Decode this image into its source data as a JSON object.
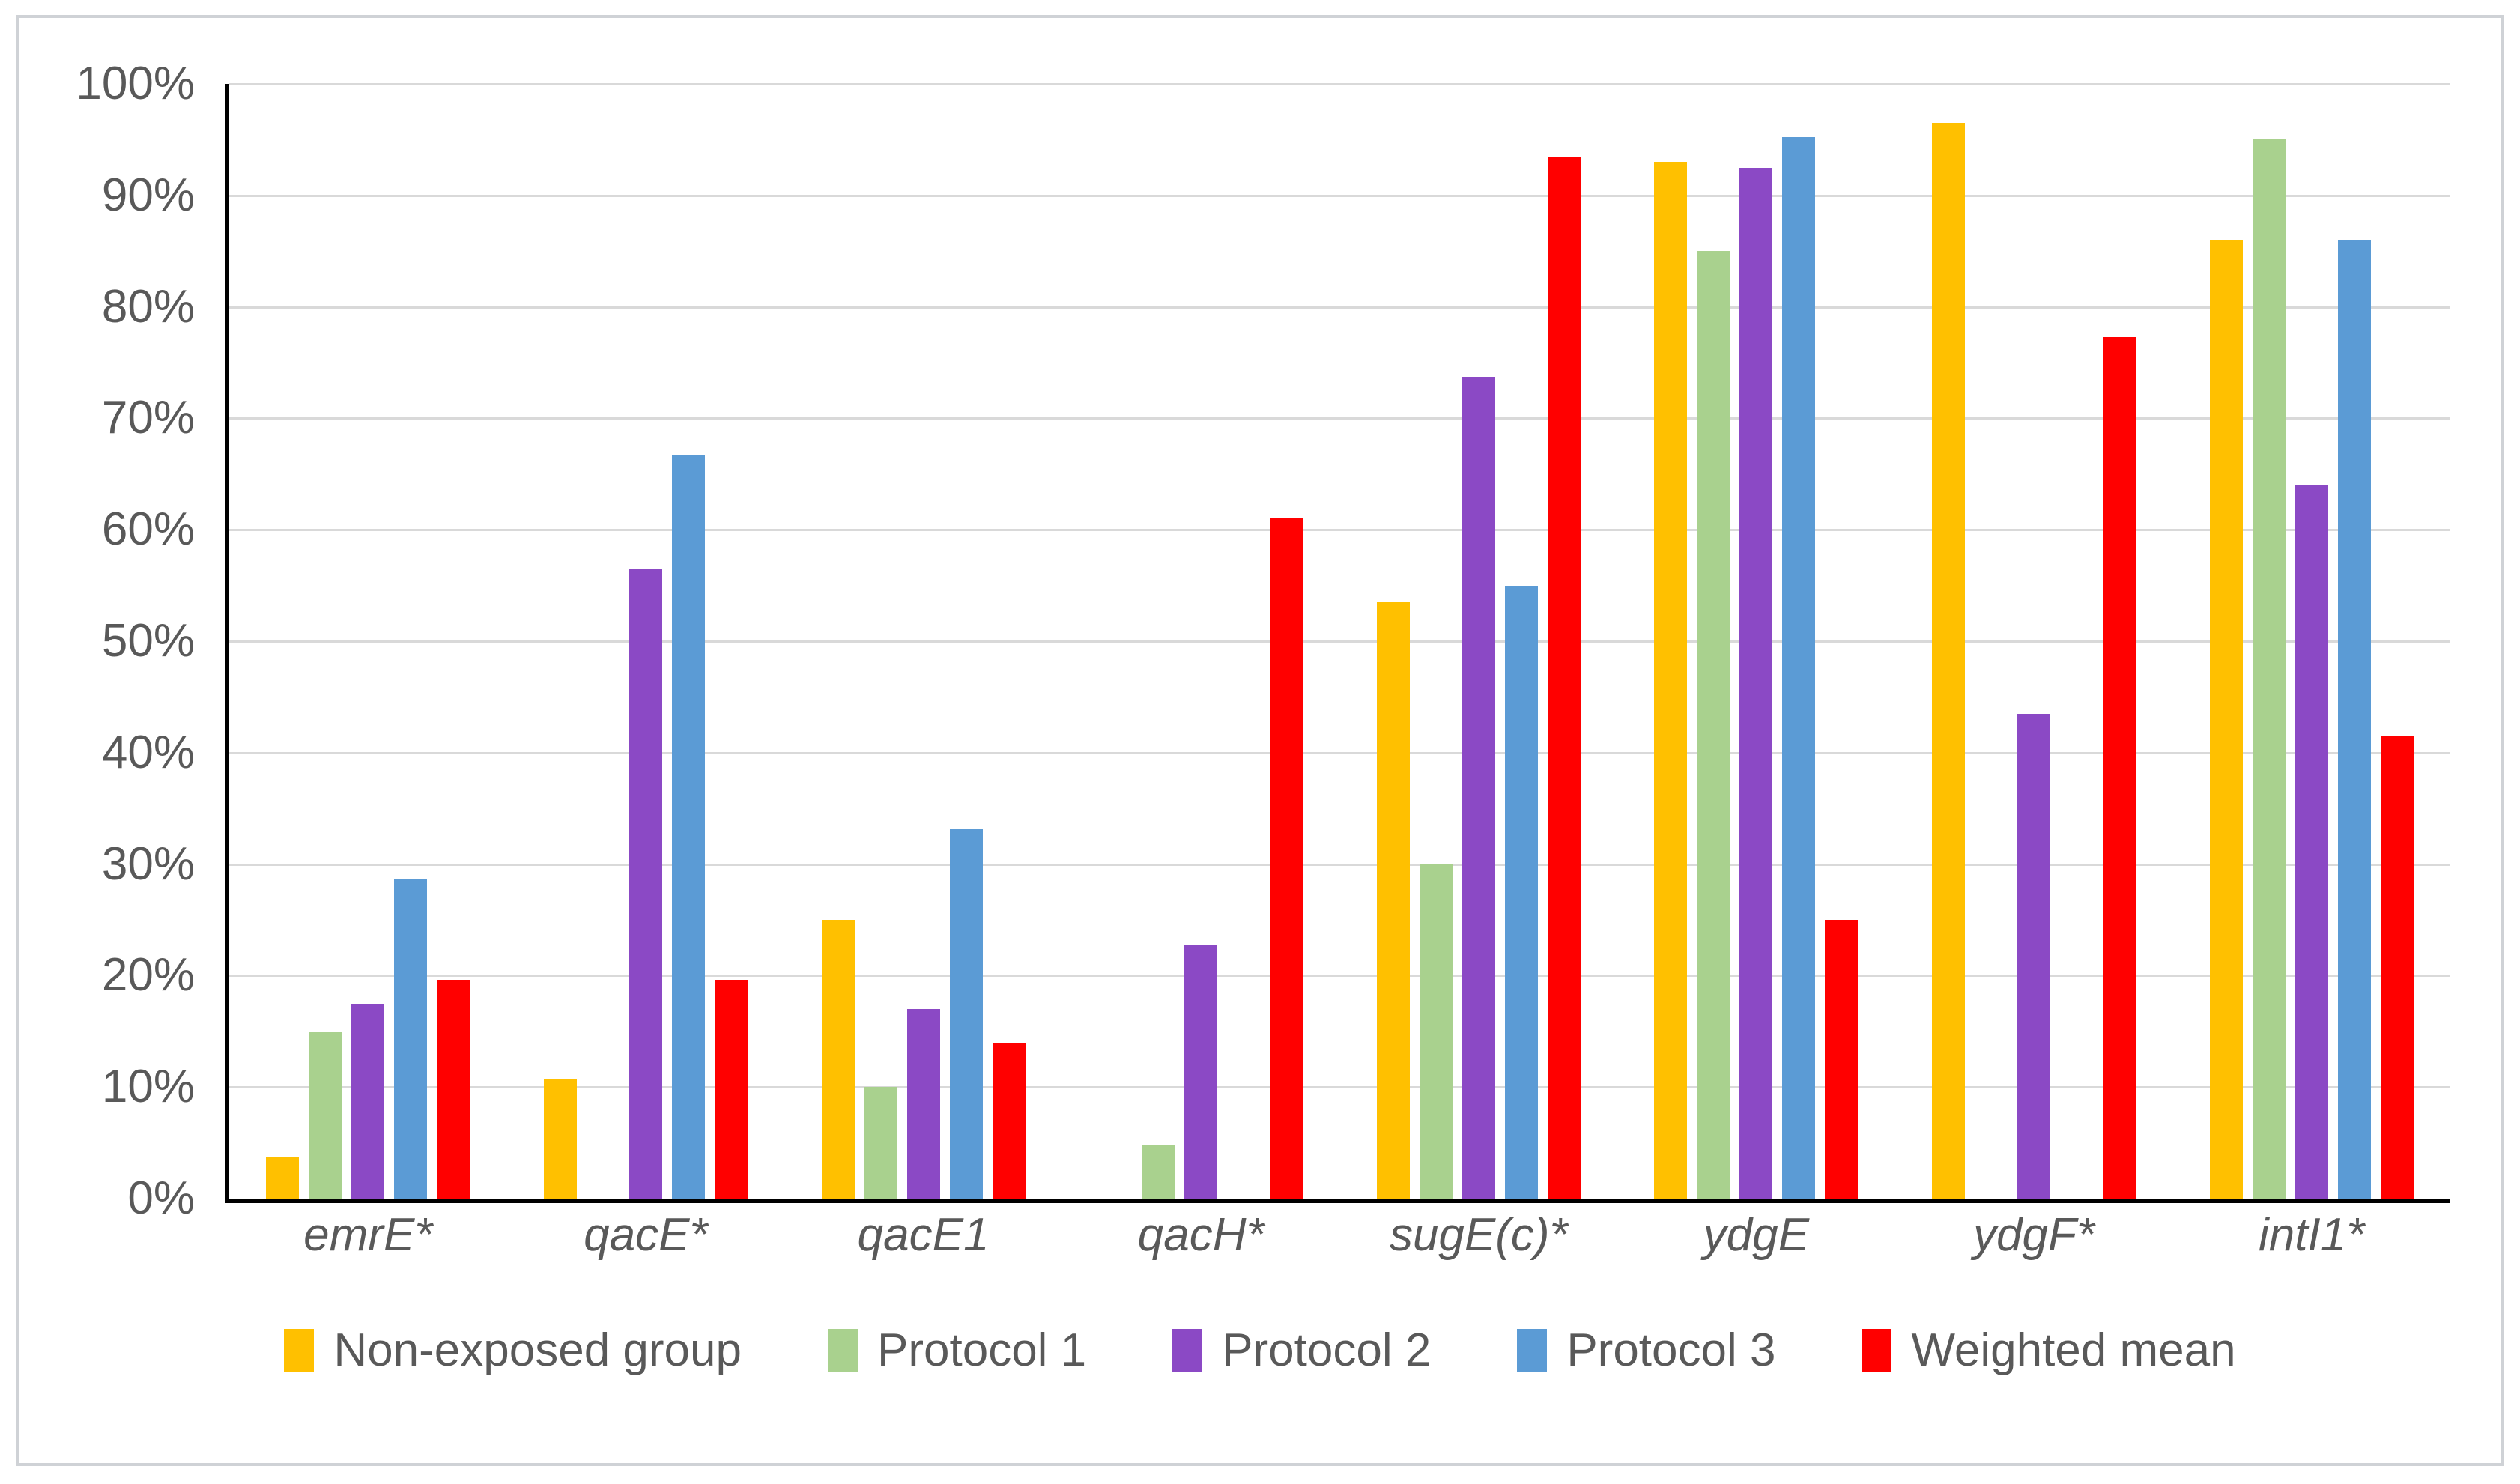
{
  "style": {
    "background": "#FFFFFF",
    "frame_border": "#CFD2D6",
    "gridline_color": "#D9D9D9",
    "axis_color": "#000000",
    "text_color": "#595959"
  },
  "chart_data": {
    "type": "bar",
    "title": "",
    "xlabel": "",
    "ylabel": "",
    "ylim": [
      0,
      100
    ],
    "grid": true,
    "legend_position": "bottom",
    "yticks": [
      "0%",
      "10%",
      "20%",
      "30%",
      "40%",
      "50%",
      "60%",
      "70%",
      "80%",
      "90%",
      "100%"
    ],
    "categories": [
      "emrE*",
      "qacE*",
      "qacE1",
      "qacH*",
      "sugE(c)*",
      "ydgE",
      "ydgF*",
      "intI1*"
    ],
    "series": [
      {
        "name": "Non-exposed group",
        "color": "#FFC000",
        "values": [
          3.7,
          10.7,
          25.0,
          0,
          53.5,
          93.0,
          96.5,
          86.0
        ]
      },
      {
        "name": "Protocol 1",
        "color": "#A9D18E",
        "values": [
          15.0,
          0,
          10.0,
          4.8,
          30.0,
          85.0,
          0,
          95.0
        ]
      },
      {
        "name": "Protocol 2",
        "color": "#8B49C5",
        "values": [
          17.5,
          56.5,
          17.0,
          22.7,
          73.7,
          92.5,
          43.5,
          64.0
        ]
      },
      {
        "name": "Protocol 3",
        "color": "#5B9BD5",
        "values": [
          28.6,
          66.7,
          33.2,
          0,
          55.0,
          95.2,
          0,
          86.0
        ]
      },
      {
        "name": "Weighted mean",
        "color": "#FF0000",
        "values": [
          19.6,
          19.6,
          14.0,
          61.0,
          93.5,
          25.0,
          77.3,
          41.5
        ]
      }
    ]
  }
}
